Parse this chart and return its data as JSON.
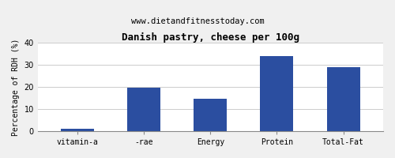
{
  "title": "Danish pastry, cheese per 100g",
  "subtitle": "www.dietandfitnesstoday.com",
  "categories": [
    "vitamin-a",
    "-rae",
    "Energy",
    "Protein",
    "Total-Fat"
  ],
  "values": [
    1,
    19.5,
    14.5,
    34,
    29
  ],
  "bar_color": "#2b4ea0",
  "ylabel": "Percentage of RDH (%)",
  "ylim": [
    0,
    40
  ],
  "yticks": [
    0,
    10,
    20,
    30,
    40
  ],
  "background_color": "#f0f0f0",
  "plot_bg_color": "#ffffff",
  "title_fontsize": 9,
  "subtitle_fontsize": 7.5,
  "ylabel_fontsize": 7,
  "tick_fontsize": 7
}
